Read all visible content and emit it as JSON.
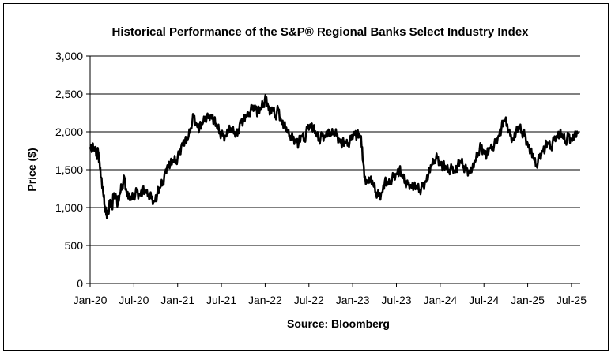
{
  "chart_data": {
    "type": "line",
    "title": "Historical Performance of the S&P® Regional Banks Select Industry Index",
    "xlabel": "Source: Bloomberg",
    "ylabel": "Price ($)",
    "ylim": [
      0,
      3000
    ],
    "yticks": [
      0,
      500,
      1000,
      1500,
      2000,
      2500,
      3000
    ],
    "ytick_labels": [
      "0",
      "500",
      "1,000",
      "1,500",
      "2,000",
      "2,500",
      "3,000"
    ],
    "xticks": [
      {
        "t": 0,
        "label": "Jan-20"
      },
      {
        "t": 6,
        "label": "Jul-20"
      },
      {
        "t": 12,
        "label": "Jan-21"
      },
      {
        "t": 18,
        "label": "Jul-21"
      },
      {
        "t": 24,
        "label": "Jan-22"
      },
      {
        "t": 30,
        "label": "Jul-22"
      },
      {
        "t": 36,
        "label": "Jan-23"
      },
      {
        "t": 42,
        "label": "Jul-23"
      },
      {
        "t": 48,
        "label": "Jan-24"
      },
      {
        "t": 54,
        "label": "Jul-24"
      },
      {
        "t": 60,
        "label": "Jan-25"
      },
      {
        "t": 66,
        "label": "Jul-25"
      }
    ],
    "xlim": [
      0,
      67.2
    ],
    "grid": true,
    "legend": "none",
    "line_color": "#000000",
    "series": [
      {
        "points": [
          [
            0.0,
            1800
          ],
          [
            0.3,
            1790
          ],
          [
            0.6,
            1760
          ],
          [
            0.9,
            1700
          ],
          [
            1.1,
            1740
          ],
          [
            1.3,
            1600
          ],
          [
            1.5,
            1400
          ],
          [
            1.8,
            1180
          ],
          [
            2.0,
            1020
          ],
          [
            2.2,
            900
          ],
          [
            2.4,
            960
          ],
          [
            2.6,
            1000
          ],
          [
            2.8,
            1100
          ],
          [
            3.0,
            1000
          ],
          [
            3.2,
            1150
          ],
          [
            3.5,
            1180
          ],
          [
            3.8,
            1050
          ],
          [
            4.1,
            1180
          ],
          [
            4.4,
            1300
          ],
          [
            4.7,
            1400
          ],
          [
            5.0,
            1200
          ],
          [
            5.3,
            1150
          ],
          [
            5.6,
            1100
          ],
          [
            6.0,
            1150
          ],
          [
            6.4,
            1200
          ],
          [
            6.8,
            1180
          ],
          [
            7.2,
            1230
          ],
          [
            7.6,
            1200
          ],
          [
            8.0,
            1170
          ],
          [
            8.4,
            1120
          ],
          [
            8.8,
            1080
          ],
          [
            9.2,
            1180
          ],
          [
            9.6,
            1260
          ],
          [
            10.0,
            1350
          ],
          [
            10.3,
            1450
          ],
          [
            10.6,
            1560
          ],
          [
            11.0,
            1580
          ],
          [
            11.4,
            1600
          ],
          [
            11.8,
            1620
          ],
          [
            12.2,
            1700
          ],
          [
            12.6,
            1850
          ],
          [
            13.0,
            1880
          ],
          [
            13.4,
            1900
          ],
          [
            13.8,
            2050
          ],
          [
            14.2,
            2200
          ],
          [
            14.6,
            2100
          ],
          [
            15.0,
            2050
          ],
          [
            15.4,
            2100
          ],
          [
            15.8,
            2200
          ],
          [
            16.2,
            2180
          ],
          [
            16.6,
            2220
          ],
          [
            17.0,
            2150
          ],
          [
            17.4,
            2050
          ],
          [
            17.8,
            2000
          ],
          [
            18.2,
            1950
          ],
          [
            18.6,
            1950
          ],
          [
            19.0,
            2050
          ],
          [
            19.4,
            2000
          ],
          [
            19.8,
            2000
          ],
          [
            20.2,
            1950
          ],
          [
            20.6,
            2150
          ],
          [
            21.0,
            2150
          ],
          [
            21.4,
            2200
          ],
          [
            21.8,
            2250
          ],
          [
            22.2,
            2300
          ],
          [
            22.6,
            2350
          ],
          [
            23.0,
            2250
          ],
          [
            23.4,
            2300
          ],
          [
            23.8,
            2380
          ],
          [
            24.1,
            2460
          ],
          [
            24.4,
            2350
          ],
          [
            24.7,
            2250
          ],
          [
            25.0,
            2300
          ],
          [
            25.4,
            2200
          ],
          [
            25.8,
            2300
          ],
          [
            26.2,
            2150
          ],
          [
            26.6,
            2100
          ],
          [
            27.0,
            2000
          ],
          [
            27.4,
            1950
          ],
          [
            27.8,
            1900
          ],
          [
            28.2,
            1900
          ],
          [
            28.6,
            1850
          ],
          [
            29.0,
            1950
          ],
          [
            29.4,
            1900
          ],
          [
            29.8,
            2050
          ],
          [
            30.2,
            2100
          ],
          [
            30.6,
            2050
          ],
          [
            31.0,
            1950
          ],
          [
            31.4,
            1900
          ],
          [
            31.8,
            1950
          ],
          [
            32.2,
            1950
          ],
          [
            32.6,
            2000
          ],
          [
            33.0,
            1950
          ],
          [
            33.4,
            2000
          ],
          [
            33.8,
            1950
          ],
          [
            34.2,
            1900
          ],
          [
            34.6,
            1850
          ],
          [
            35.0,
            1850
          ],
          [
            35.4,
            1850
          ],
          [
            35.8,
            1900
          ],
          [
            36.2,
            2000
          ],
          [
            36.6,
            1950
          ],
          [
            37.0,
            1950
          ],
          [
            37.3,
            1800
          ],
          [
            37.6,
            1400
          ],
          [
            38.0,
            1350
          ],
          [
            38.4,
            1380
          ],
          [
            38.8,
            1300
          ],
          [
            39.2,
            1200
          ],
          [
            39.6,
            1150
          ],
          [
            40.0,
            1200
          ],
          [
            40.4,
            1350
          ],
          [
            40.8,
            1300
          ],
          [
            41.2,
            1350
          ],
          [
            41.6,
            1400
          ],
          [
            42.0,
            1450
          ],
          [
            42.4,
            1500
          ],
          [
            42.8,
            1400
          ],
          [
            43.2,
            1350
          ],
          [
            43.6,
            1300
          ],
          [
            44.0,
            1300
          ],
          [
            44.4,
            1280
          ],
          [
            44.8,
            1250
          ],
          [
            45.2,
            1230
          ],
          [
            45.6,
            1280
          ],
          [
            46.0,
            1350
          ],
          [
            46.4,
            1450
          ],
          [
            46.8,
            1550
          ],
          [
            47.2,
            1620
          ],
          [
            47.6,
            1650
          ],
          [
            48.0,
            1600
          ],
          [
            48.4,
            1550
          ],
          [
            48.8,
            1520
          ],
          [
            49.2,
            1500
          ],
          [
            49.6,
            1520
          ],
          [
            50.0,
            1480
          ],
          [
            50.4,
            1550
          ],
          [
            50.8,
            1600
          ],
          [
            51.2,
            1550
          ],
          [
            51.6,
            1500
          ],
          [
            52.0,
            1480
          ],
          [
            52.4,
            1520
          ],
          [
            52.8,
            1600
          ],
          [
            53.2,
            1720
          ],
          [
            53.6,
            1800
          ],
          [
            54.0,
            1750
          ],
          [
            54.4,
            1700
          ],
          [
            54.8,
            1780
          ],
          [
            55.2,
            1800
          ],
          [
            55.6,
            1850
          ],
          [
            56.0,
            1950
          ],
          [
            56.4,
            2050
          ],
          [
            56.8,
            2150
          ],
          [
            57.2,
            2100
          ],
          [
            57.6,
            1950
          ],
          [
            58.0,
            1900
          ],
          [
            58.4,
            2000
          ],
          [
            58.8,
            2050
          ],
          [
            59.2,
            2000
          ],
          [
            59.6,
            1950
          ],
          [
            60.0,
            1850
          ],
          [
            60.4,
            1750
          ],
          [
            60.8,
            1650
          ],
          [
            61.2,
            1550
          ],
          [
            61.6,
            1650
          ],
          [
            62.0,
            1750
          ],
          [
            62.4,
            1800
          ],
          [
            62.8,
            1850
          ],
          [
            63.2,
            1800
          ],
          [
            63.6,
            1900
          ],
          [
            64.0,
            1950
          ],
          [
            64.4,
            1980
          ],
          [
            64.8,
            1920
          ],
          [
            65.2,
            1880
          ],
          [
            65.6,
            1950
          ],
          [
            66.0,
            1900
          ],
          [
            66.4,
            1960
          ],
          [
            66.9,
            1970
          ]
        ]
      }
    ]
  }
}
